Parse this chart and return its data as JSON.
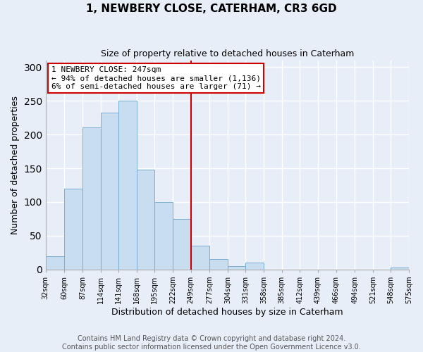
{
  "title": "1, NEWBERY CLOSE, CATERHAM, CR3 6GD",
  "subtitle": "Size of property relative to detached houses in Caterham",
  "xlabel": "Distribution of detached houses by size in Caterham",
  "ylabel": "Number of detached properties",
  "bar_edges": [
    32,
    60,
    87,
    114,
    141,
    168,
    195,
    222,
    249,
    277,
    304,
    331,
    358,
    385,
    412,
    439,
    466,
    494,
    521,
    548,
    575
  ],
  "bar_heights": [
    20,
    120,
    210,
    232,
    250,
    148,
    100,
    75,
    35,
    16,
    5,
    10,
    0,
    0,
    0,
    0,
    0,
    0,
    0,
    3
  ],
  "bar_color": "#c9ddf0",
  "bar_edge_color": "#7aadd4",
  "property_line_x": 249,
  "property_line_color": "#cc0000",
  "annotation_line1": "1 NEWBERY CLOSE: 247sqm",
  "annotation_line2": "← 94% of detached houses are smaller (1,136)",
  "annotation_line3": "6% of semi-detached houses are larger (71) →",
  "annotation_box_color": "#ffffff",
  "annotation_box_edge_color": "#cc0000",
  "tick_labels": [
    "32sqm",
    "60sqm",
    "87sqm",
    "114sqm",
    "141sqm",
    "168sqm",
    "195sqm",
    "222sqm",
    "249sqm",
    "277sqm",
    "304sqm",
    "331sqm",
    "358sqm",
    "385sqm",
    "412sqm",
    "439sqm",
    "466sqm",
    "494sqm",
    "521sqm",
    "548sqm",
    "575sqm"
  ],
  "ylim": [
    0,
    310
  ],
  "xlim": [
    32,
    575
  ],
  "yticks": [
    0,
    50,
    100,
    150,
    200,
    250,
    300
  ],
  "footer_line1": "Contains HM Land Registry data © Crown copyright and database right 2024.",
  "footer_line2": "Contains public sector information licensed under the Open Government Licence v3.0.",
  "bg_color": "#e8eef8",
  "plot_bg_color": "#e8eef8",
  "grid_color": "#ffffff",
  "title_fontsize": 11,
  "subtitle_fontsize": 9,
  "axis_label_fontsize": 9,
  "tick_fontsize": 7,
  "annotation_fontsize": 8,
  "footer_fontsize": 7
}
